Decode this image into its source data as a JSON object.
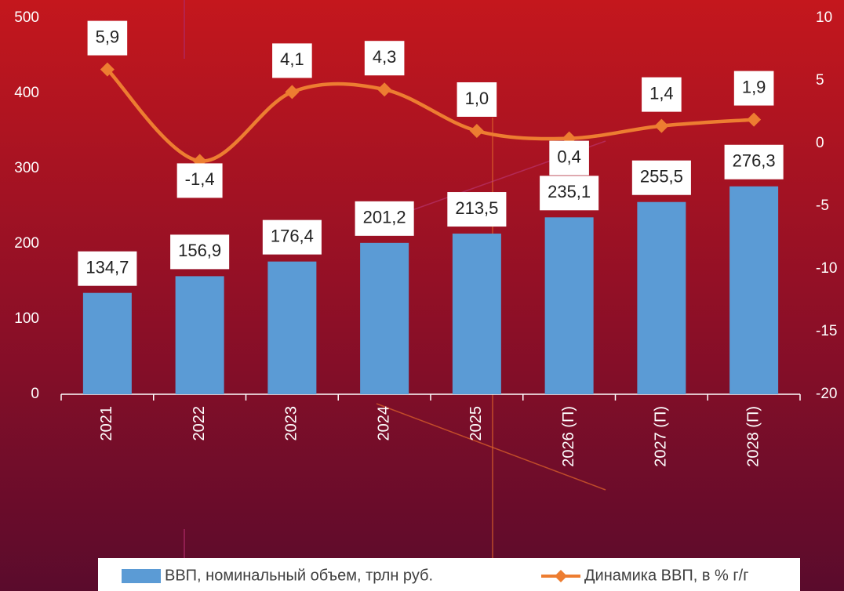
{
  "chart_data": {
    "type": "combo",
    "categories": [
      "2021",
      "2022",
      "2023",
      "2024",
      "2025",
      "2026 (П)",
      "2027 (П)",
      "2028 (П)"
    ],
    "series": [
      {
        "name": "ВВП, номинальный объем, трлн руб.",
        "type": "bar",
        "color": "#5b9bd5",
        "values": [
          134.7,
          156.9,
          176.4,
          201.2,
          213.5,
          235.1,
          255.5,
          276.3
        ],
        "value_labels": [
          "134,7",
          "156,9",
          "176,4",
          "201,2",
          "213,5",
          "235,1",
          "255,5",
          "276,3"
        ]
      },
      {
        "name": "Динамика ВВП, в % г/г",
        "type": "line",
        "axis": "y2",
        "smooth": true,
        "color": "#ed7d31",
        "values": [
          5.9,
          -1.4,
          4.1,
          4.3,
          1.0,
          0.4,
          1.4,
          1.9
        ],
        "value_labels": [
          "5,9",
          "-1,4",
          "4,1",
          "4,3",
          "1,0",
          "0,4",
          "1,4",
          "1,9"
        ]
      }
    ],
    "ylim": [
      0,
      500
    ],
    "yticks": [
      0,
      100,
      200,
      300,
      400,
      500
    ],
    "y2lim": [
      -20,
      10
    ],
    "y2ticks": [
      10,
      5,
      0,
      -5,
      -10,
      -15,
      -20
    ],
    "legend": "bottom"
  }
}
